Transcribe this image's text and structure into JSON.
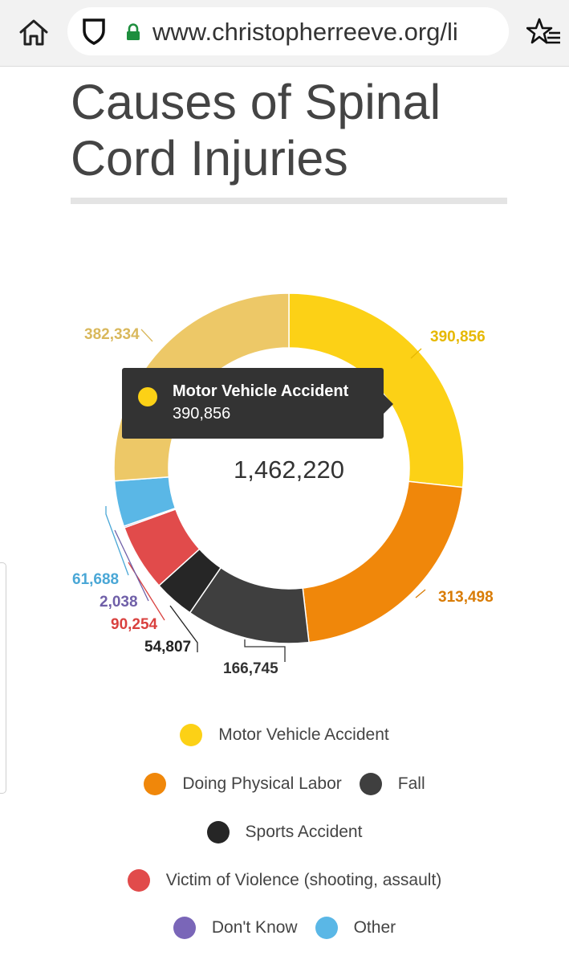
{
  "browser": {
    "url": "www.christopherreeve.org/li"
  },
  "page": {
    "title_line1": "Causes of Spinal",
    "title_line2": "Cord Injuries"
  },
  "tooltip": {
    "label": "Motor Vehicle Accident",
    "value": "390,856",
    "color": "#fcd116"
  },
  "chart_data": {
    "type": "pie",
    "variant": "donut",
    "center_label": "1,462,220",
    "slices": [
      {
        "label": "Motor Vehicle Accident",
        "value": 390856,
        "value_label": "390,856",
        "color": "#fcd116"
      },
      {
        "label": "Doing Physical Labor",
        "value": 313498,
        "value_label": "313,498",
        "color": "#f0870a"
      },
      {
        "label": "Fall",
        "value": 166745,
        "value_label": "166,745",
        "color": "#3f3f3f"
      },
      {
        "label": "Sports Accident",
        "value": 54807,
        "value_label": "54,807",
        "color": "#262626"
      },
      {
        "label": "Victim of Violence (shooting, assault)",
        "value": 90254,
        "value_label": "90,254",
        "color": "#e14b4b"
      },
      {
        "label": "Don't Know",
        "value": 2038,
        "value_label": "2,038",
        "color": "#7a66b8"
      },
      {
        "label": "Other",
        "value": 61688,
        "value_label": "61,688",
        "color": "#5ab7e6"
      },
      {
        "label": "",
        "value": 382334,
        "value_label": "382,334",
        "color": "#edc867"
      }
    ],
    "label_colors": [
      "#e6b800",
      "#d97c06",
      "#333333",
      "#222222",
      "#d9413f",
      "#6f5fa8",
      "#4aa7d6",
      "#d9b85c"
    ]
  },
  "legend": {
    "rows": [
      [
        {
          "label": "Motor Vehicle Accident",
          "color": "#fcd116"
        }
      ],
      [
        {
          "label": "Doing Physical Labor",
          "color": "#f0870a"
        },
        {
          "label": "Fall",
          "color": "#3f3f3f"
        }
      ],
      [
        {
          "label": "Sports Accident",
          "color": "#262626"
        }
      ],
      [
        {
          "label": "Victim of Violence (shooting, assault)",
          "color": "#e14b4b"
        }
      ],
      [
        {
          "label": "Don't Know",
          "color": "#7a66b8"
        },
        {
          "label": "Other",
          "color": "#5ab7e6"
        }
      ]
    ]
  }
}
